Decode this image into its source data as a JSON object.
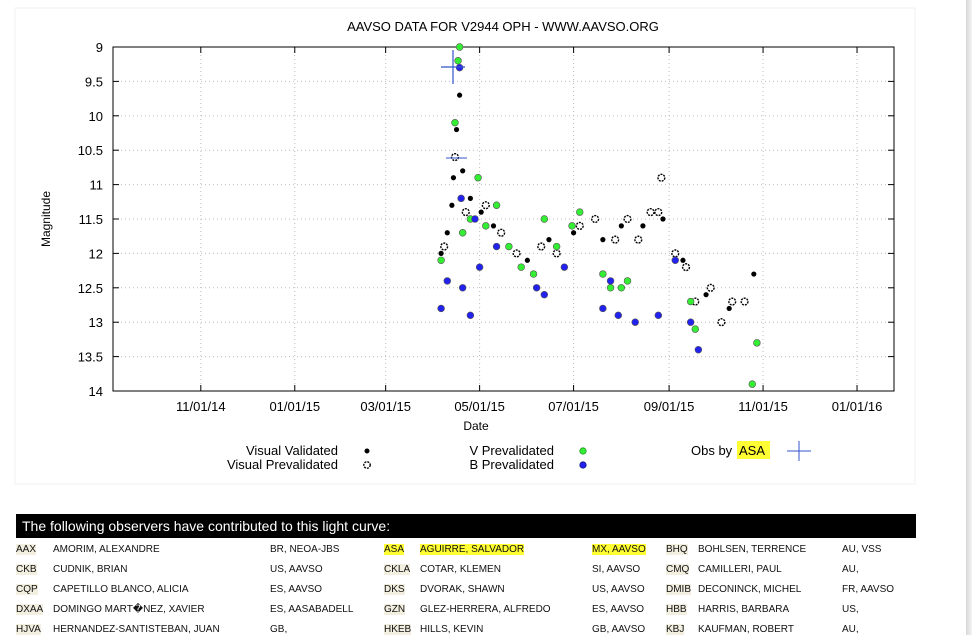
{
  "chart_data": {
    "type": "scatter",
    "title": "AAVSO DATA FOR V2944 OPH - WWW.AAVSO.ORG",
    "xlabel": "Date",
    "ylabel": "Magnitude",
    "x_ticks": [
      "11/01/14",
      "01/01/15",
      "03/01/15",
      "05/01/15",
      "07/01/15",
      "09/01/15",
      "11/01/15",
      "01/01/16"
    ],
    "y_ticks": [
      "9",
      "9.5",
      "10",
      "10.5",
      "11",
      "11.5",
      "12",
      "12.5",
      "13",
      "13.5",
      "14"
    ],
    "y_inverted": true,
    "ylim": [
      9,
      14
    ],
    "grid": true,
    "legend": {
      "visual_validated": "Visual Validated",
      "visual_prevalidated": "Visual Prevalidated",
      "v_prevalidated": "V Prevalidated",
      "b_prevalidated": "B Prevalidated",
      "obs_by_prefix": "Obs by",
      "obs_by_code": "ASA"
    },
    "series": [
      {
        "name": "Visual Validated",
        "color": "#000000",
        "marker": "filled",
        "points": [
          [
            "2015-04-06",
            12.0
          ],
          [
            "2015-04-10",
            11.7
          ],
          [
            "2015-04-13",
            11.3
          ],
          [
            "2015-04-14",
            10.9
          ],
          [
            "2015-04-16",
            10.2
          ],
          [
            "2015-04-18",
            9.7
          ],
          [
            "2015-04-20",
            10.8
          ],
          [
            "2015-04-25",
            11.2
          ],
          [
            "2015-05-02",
            11.4
          ],
          [
            "2015-05-10",
            11.6
          ],
          [
            "2015-05-20",
            11.9
          ],
          [
            "2015-06-01",
            12.1
          ],
          [
            "2015-06-15",
            11.8
          ],
          [
            "2015-07-01",
            11.7
          ],
          [
            "2015-07-20",
            11.8
          ],
          [
            "2015-08-01",
            11.6
          ],
          [
            "2015-08-15",
            11.6
          ],
          [
            "2015-08-28",
            11.5
          ],
          [
            "2015-09-10",
            12.1
          ],
          [
            "2015-09-25",
            12.6
          ],
          [
            "2015-10-10",
            12.8
          ],
          [
            "2015-10-26",
            12.3
          ]
        ]
      },
      {
        "name": "Visual Prevalidated",
        "color": "#000000",
        "marker": "hatched",
        "points": [
          [
            "2015-04-08",
            11.9
          ],
          [
            "2015-04-15",
            10.6
          ],
          [
            "2015-04-22",
            11.4
          ],
          [
            "2015-05-05",
            11.3
          ],
          [
            "2015-05-15",
            11.7
          ],
          [
            "2015-05-25",
            12.0
          ],
          [
            "2015-06-10",
            11.9
          ],
          [
            "2015-06-20",
            12.0
          ],
          [
            "2015-07-05",
            11.6
          ],
          [
            "2015-07-15",
            11.5
          ],
          [
            "2015-07-28",
            11.8
          ],
          [
            "2015-08-05",
            11.5
          ],
          [
            "2015-08-12",
            11.8
          ],
          [
            "2015-08-20",
            11.4
          ],
          [
            "2015-08-25",
            11.4
          ],
          [
            "2015-08-27",
            10.9
          ],
          [
            "2015-09-05",
            12.0
          ],
          [
            "2015-09-12",
            12.2
          ],
          [
            "2015-09-18",
            12.7
          ],
          [
            "2015-09-28",
            12.5
          ],
          [
            "2015-10-05",
            13.0
          ],
          [
            "2015-10-12",
            12.7
          ],
          [
            "2015-10-20",
            12.7
          ]
        ]
      },
      {
        "name": "V Prevalidated",
        "color": "#33ee33",
        "marker": "circle",
        "points": [
          [
            "2015-04-06",
            12.1
          ],
          [
            "2015-04-15",
            10.1
          ],
          [
            "2015-04-17",
            9.2
          ],
          [
            "2015-04-18",
            9.0
          ],
          [
            "2015-04-20",
            11.7
          ],
          [
            "2015-04-25",
            11.5
          ],
          [
            "2015-04-30",
            10.9
          ],
          [
            "2015-05-05",
            11.6
          ],
          [
            "2015-05-12",
            11.3
          ],
          [
            "2015-05-20",
            11.9
          ],
          [
            "2015-05-28",
            12.2
          ],
          [
            "2015-06-05",
            12.3
          ],
          [
            "2015-06-12",
            11.5
          ],
          [
            "2015-06-20",
            11.9
          ],
          [
            "2015-06-30",
            11.6
          ],
          [
            "2015-07-05",
            11.4
          ],
          [
            "2015-07-20",
            12.3
          ],
          [
            "2015-07-25",
            12.5
          ],
          [
            "2015-08-01",
            12.5
          ],
          [
            "2015-08-05",
            12.4
          ],
          [
            "2015-09-15",
            12.7
          ],
          [
            "2015-09-18",
            13.1
          ],
          [
            "2015-10-25",
            13.9
          ],
          [
            "2015-10-28",
            13.3
          ]
        ]
      },
      {
        "name": "B Prevalidated",
        "color": "#2222ee",
        "marker": "circle",
        "points": [
          [
            "2015-04-06",
            12.8
          ],
          [
            "2015-04-10",
            12.4
          ],
          [
            "2015-04-18",
            9.3
          ],
          [
            "2015-04-19",
            11.2
          ],
          [
            "2015-04-20",
            12.5
          ],
          [
            "2015-04-25",
            12.9
          ],
          [
            "2015-04-28",
            11.5
          ],
          [
            "2015-05-01",
            12.2
          ],
          [
            "2015-05-12",
            11.9
          ],
          [
            "2015-06-07",
            12.5
          ],
          [
            "2015-06-12",
            12.6
          ],
          [
            "2015-06-25",
            12.2
          ],
          [
            "2015-07-20",
            12.8
          ],
          [
            "2015-07-25",
            12.4
          ],
          [
            "2015-07-30",
            12.9
          ],
          [
            "2015-08-10",
            13.0
          ],
          [
            "2015-08-25",
            12.9
          ],
          [
            "2015-09-05",
            12.1
          ],
          [
            "2015-09-15",
            13.0
          ],
          [
            "2015-09-20",
            13.4
          ]
        ]
      }
    ]
  },
  "observers_title": "The following observers have contributed to this light curve:",
  "observers": [
    [
      [
        "AAX",
        "AMORIM, ALEXANDRE",
        "BR, NEOA-JBS"
      ],
      [
        "ASA",
        "AGUIRRE, SALVADOR",
        "MX, AAVSO"
      ],
      [
        "BHQ",
        "BOHLSEN, TERRENCE",
        "AU, VSS"
      ]
    ],
    [
      [
        "CKB",
        "CUDNIK, BRIAN",
        "US, AAVSO"
      ],
      [
        "CKLA",
        "COTAR, KLEMEN",
        "SI, AAVSO"
      ],
      [
        "CMQ",
        "CAMILLERI, PAUL",
        "AU,"
      ]
    ],
    [
      [
        "CQP",
        "CAPETILLO BLANCO, ALICIA",
        "ES, AAVSO"
      ],
      [
        "DKS",
        "DVORAK, SHAWN",
        "US, AAVSO"
      ],
      [
        "DMIB",
        "DECONINCK, MICHEL",
        "FR, AAVSO"
      ]
    ],
    [
      [
        "DXAA",
        "DOMINGO MART�NEZ, XAVIER",
        "ES, AASABADELL"
      ],
      [
        "GZN",
        "GLEZ-HERRERA, ALFREDO",
        "ES, AAVSO"
      ],
      [
        "HBB",
        "HARRIS, BARBARA",
        "US,"
      ]
    ],
    [
      [
        "HJVA",
        "HERNANDEZ-SANTISTEBAN, JUAN",
        "GB,"
      ],
      [
        "HKEB",
        "HILLS, KEVIN",
        "GB, AAVSO"
      ],
      [
        "KBJ",
        "KAUFMAN, ROBERT",
        "AU,"
      ]
    ]
  ]
}
